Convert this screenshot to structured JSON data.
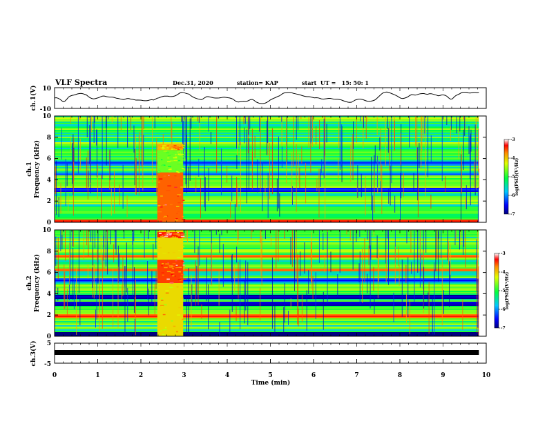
{
  "header": {
    "title": "VLF Spectra",
    "date": "Dec.31, 2020",
    "station": "station= KAP",
    "start": "start  UT =   15: 50: 1"
  },
  "chart_data": [
    {
      "type": "line",
      "name": "ch1-waveform",
      "ylabel": "ch.1(V)",
      "ylim": [
        -10,
        10
      ],
      "yticks": [
        "10",
        "-10"
      ],
      "xlim": [
        0,
        10
      ],
      "data_x_end": 9.83,
      "y": [
        0.1,
        0.3,
        -0.2,
        -1.1,
        -2.5,
        -3.6,
        -2.8,
        -1.0,
        1.1,
        2.0,
        2.6,
        2.9,
        3.4,
        4.0,
        4.3,
        4.5,
        4.2,
        3.6,
        3.0,
        1.6,
        0.4,
        -0.4,
        -0.8,
        -0.6,
        -0.1,
        0.4,
        1.2,
        1.8,
        2.0,
        1.5,
        1.2,
        0.9,
        0.9,
        0.8,
        0.4,
        -0.2,
        -0.4,
        -0.8,
        -1.2,
        -1.5,
        -1.0,
        -0.5,
        -0.5,
        -1.0,
        -1.2,
        -1.6,
        -2.0,
        -1.9,
        -2.0,
        -2.1,
        -2.4,
        -2.6,
        -2.6,
        -2.3,
        -1.8,
        -1.6,
        -1.9,
        -1.1,
        -0.2,
        0.2,
        0.9,
        1.4,
        1.8,
        1.8,
        1.8,
        1.5,
        1.4,
        1.6,
        2.0,
        2.8,
        3.9,
        5.0,
        5.6,
        5.3,
        4.7,
        4.2,
        3.8,
        2.4,
        1.3,
        0.4,
        -0.3,
        -0.8,
        -1.2,
        -1.6,
        -0.8,
        0.4,
        1.3,
        1.3,
        1.0,
        0.6,
        0.2,
        0.0,
        0.0,
        0.1,
        0.3,
        0.7,
        0.8,
        0.6,
        0.3,
        0.1,
        -0.4,
        -1.1,
        -2.5,
        -3.6,
        -3.8,
        -3.6,
        -3.4,
        -3.2,
        -3.3,
        -3.0,
        -2.2,
        -1.4,
        -1.4,
        -2.4,
        -3.8,
        -4.5,
        -5.2,
        -5.3,
        -5.3,
        -5.0,
        -4.2,
        -3.2,
        -1.9,
        -1.0,
        -0.2,
        0.5,
        1.4,
        2.0,
        3.0,
        4.3,
        5.0,
        5.2,
        5.4,
        5.4,
        5.2,
        4.6,
        4.2,
        3.8,
        3.4,
        3.0,
        2.4,
        1.9,
        1.5,
        1.3,
        1.3,
        1.0,
        0.6,
        0.2,
        0.3,
        0.2,
        -0.3,
        -0.8,
        -1.0,
        -0.8,
        -0.6,
        -0.3,
        -0.3,
        -0.7,
        -1.1,
        -1.2,
        -1.2,
        -1.4,
        -1.7,
        -2.4,
        -3.0,
        -3.6,
        -4.0,
        -4.2,
        -4.0,
        -3.0,
        -2.0,
        -1.4,
        -1.0,
        -1.0,
        -1.3,
        -1.9,
        -2.6,
        -3.1,
        -3.2,
        -3.0,
        -2.6,
        -2.0,
        -0.8,
        0.8,
        2.4,
        4.0,
        5.2,
        5.7,
        5.8,
        5.4,
        4.8,
        4.1,
        3.4,
        2.6,
        1.7,
        0.6,
        -0.3,
        -0.5,
        -0.1,
        0.5,
        1.4,
        2.6,
        3.3,
        3.1,
        2.8,
        3.2,
        3.8,
        4.2,
        4.3,
        4.3,
        3.8,
        3.6,
        4.2,
        4.2,
        3.8,
        3.3,
        2.8,
        2.2,
        2.5,
        3.0,
        3.0,
        2.6,
        1.6,
        0.0,
        -1.1,
        -0.8,
        1.0,
        2.4,
        3.2,
        4.0,
        5.0,
        5.7,
        5.7,
        5.6,
        5.0,
        4.8,
        5.1,
        5.4,
        5.4,
        5.2,
        5.5
      ]
    },
    {
      "type": "heatmap",
      "name": "ch1-spectrogram",
      "ylabel": "ch.1\nFrequency (kHz)",
      "ylim": [
        0,
        10
      ],
      "yticks": [
        0,
        2,
        4,
        6,
        8,
        10
      ],
      "colorbar": {
        "label": "log(PSD)(V²/Hz)",
        "min": -7,
        "max": -3,
        "ticks": [
          "-3",
          "-4",
          "-5",
          "-6",
          "-7"
        ]
      },
      "bands": [
        {
          "f": 0.2,
          "v": -3.5
        },
        {
          "f": 0.5,
          "v": -5.0
        },
        {
          "f": 1.9,
          "v": -4.6
        },
        {
          "f": 2.3,
          "v": -4.8
        },
        {
          "f": 3.1,
          "v": -6.5
        },
        {
          "f": 3.6,
          "v": -4.8
        },
        {
          "f": 4.6,
          "v": -6.3
        },
        {
          "f": 6.5,
          "v": -4.8
        },
        {
          "f": 7.3,
          "v": -4.9
        },
        {
          "f": 5.6,
          "v": -6.2
        }
      ],
      "bursts": [
        {
          "t": [
            2.38,
            2.98
          ],
          "f": [
            0,
            4.7
          ],
          "v": -3.6
        },
        {
          "t": [
            2.38,
            2.98
          ],
          "f": [
            6.8,
            7.4
          ],
          "v": -3.9
        },
        {
          "t": [
            2.38,
            2.98
          ],
          "f": [
            4.7,
            6.8
          ],
          "v": -4.7
        }
      ]
    },
    {
      "type": "heatmap",
      "name": "ch2-spectrogram",
      "ylabel": "ch.2\nFrequency (kHz)",
      "ylim": [
        0,
        10
      ],
      "yticks": [
        0,
        2,
        4,
        6,
        8,
        10
      ],
      "colorbar": {
        "label": "log(PSD)(V²/Hz)",
        "min": -7,
        "max": -3,
        "ticks": [
          "-3",
          "-4",
          "-5",
          "-6",
          "-7"
        ]
      },
      "bands": [
        {
          "f": 0.3,
          "v": -7.0
        },
        {
          "f": 1.9,
          "v": -3.6
        },
        {
          "f": 2.5,
          "v": -4.8
        },
        {
          "f": 3.1,
          "v": -6.6
        },
        {
          "f": 3.8,
          "v": -6.8
        },
        {
          "f": 4.5,
          "v": -4.6
        },
        {
          "f": 5.3,
          "v": -6.3
        },
        {
          "f": 6.3,
          "v": -3.7
        },
        {
          "f": 6.7,
          "v": -4.8
        },
        {
          "f": 7.6,
          "v": -3.8
        },
        {
          "f": 9.7,
          "v": -4.8
        }
      ],
      "bursts": [
        {
          "t": [
            2.38,
            2.98
          ],
          "f": [
            0,
            10
          ],
          "v": -4.1
        },
        {
          "t": [
            2.38,
            2.98
          ],
          "f": [
            5.0,
            7.2
          ],
          "v": -3.5
        },
        {
          "t": [
            2.38,
            2.98
          ],
          "f": [
            9.3,
            9.8
          ],
          "v": -3.4
        }
      ]
    },
    {
      "type": "line",
      "name": "ch3-trace",
      "ylabel": "ch.3(V)",
      "ylim": [
        -5,
        5
      ],
      "yticks": [
        "5",
        "-5"
      ],
      "xlim": [
        0,
        10
      ],
      "data_x_end": 9.83,
      "value": 0,
      "xlabel": "Time  (min)",
      "xticks": [
        0,
        1,
        2,
        3,
        4,
        5,
        6,
        7,
        8,
        9,
        10
      ]
    }
  ],
  "colors": {
    "trace": "#000000"
  }
}
